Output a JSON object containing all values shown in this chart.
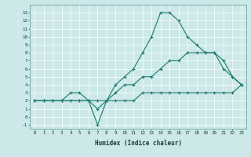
{
  "xlabel": "Humidex (Indice chaleur)",
  "bg_color": "#cce8e8",
  "grid_color": "#e8f4f4",
  "line_color": "#1a7a6e",
  "xlim": [
    -0.5,
    23.5
  ],
  "ylim": [
    -1.5,
    14
  ],
  "xticks": [
    0,
    1,
    2,
    3,
    4,
    5,
    6,
    7,
    8,
    9,
    10,
    11,
    12,
    13,
    14,
    15,
    16,
    17,
    18,
    19,
    20,
    21,
    22,
    23
  ],
  "yticks": [
    -1,
    0,
    1,
    2,
    3,
    4,
    5,
    6,
    7,
    8,
    9,
    10,
    11,
    12,
    13
  ],
  "series": [
    {
      "x": [
        0,
        1,
        2,
        3,
        4,
        5,
        6,
        7,
        8,
        9,
        10,
        11,
        12,
        13,
        14,
        15,
        16,
        17,
        18,
        19,
        20,
        21,
        22,
        23
      ],
      "y": [
        2,
        2,
        2,
        2,
        3,
        3,
        2,
        -1,
        2,
        4,
        5,
        6,
        8,
        10,
        13,
        13,
        12,
        10,
        9,
        8,
        8,
        6,
        5,
        4
      ]
    },
    {
      "x": [
        0,
        1,
        2,
        3,
        4,
        5,
        6,
        7,
        8,
        9,
        10,
        11,
        12,
        13,
        14,
        15,
        16,
        17,
        18,
        19,
        20,
        21,
        22,
        23
      ],
      "y": [
        2,
        2,
        2,
        2,
        2,
        2,
        2,
        1,
        2,
        3,
        4,
        4,
        5,
        5,
        6,
        7,
        7,
        8,
        8,
        8,
        8,
        7,
        5,
        4
      ]
    },
    {
      "x": [
        0,
        1,
        2,
        3,
        4,
        5,
        6,
        7,
        8,
        9,
        10,
        11,
        12,
        13,
        14,
        15,
        16,
        17,
        18,
        19,
        20,
        21,
        22,
        23
      ],
      "y": [
        2,
        2,
        2,
        2,
        2,
        2,
        2,
        2,
        2,
        2,
        2,
        2,
        3,
        3,
        3,
        3,
        3,
        3,
        3,
        3,
        3,
        3,
        3,
        4
      ]
    }
  ]
}
